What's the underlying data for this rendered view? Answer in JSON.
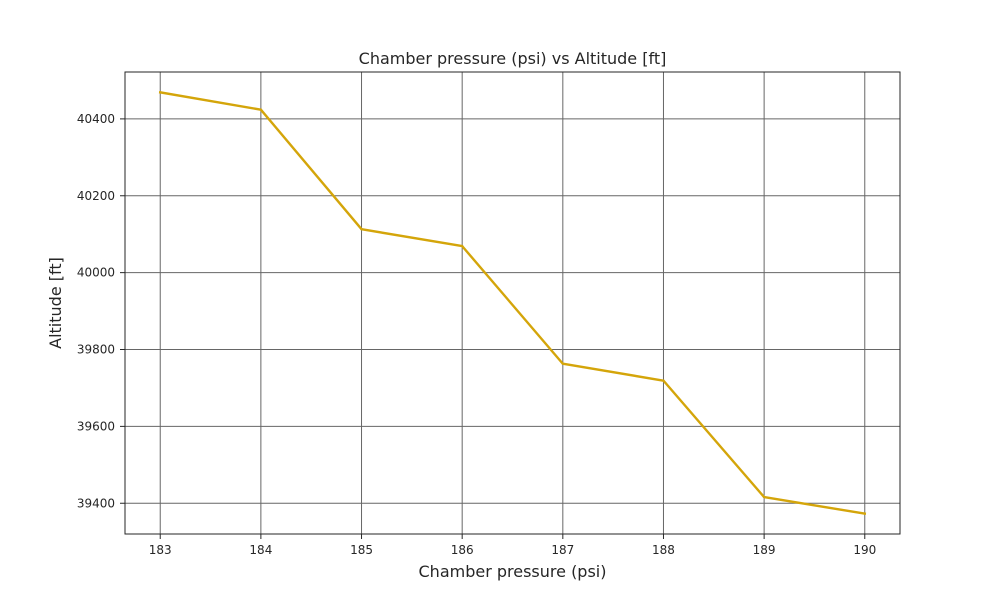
{
  "chart_data": {
    "type": "line",
    "title": "Chamber pressure (psi) vs Altitude [ft]",
    "xlabel": "Chamber pressure (psi)",
    "ylabel": "Altitude [ft]",
    "x": [
      183,
      184,
      185,
      186,
      187,
      188,
      189,
      190
    ],
    "series": [
      {
        "values": [
          40469,
          40424,
          40113,
          40069,
          39763,
          39719,
          39416,
          39373
        ],
        "color": "#d4a50a"
      }
    ],
    "xticks": [
      "183",
      "184",
      "185",
      "186",
      "187",
      "188",
      "189",
      "190"
    ],
    "yticks": [
      "39400",
      "39600",
      "39800",
      "40000",
      "40200",
      "40400"
    ],
    "xlim": [
      182.65,
      190.35
    ],
    "ylim": [
      39320,
      40522
    ],
    "grid": true,
    "grid_color": "#666666"
  }
}
